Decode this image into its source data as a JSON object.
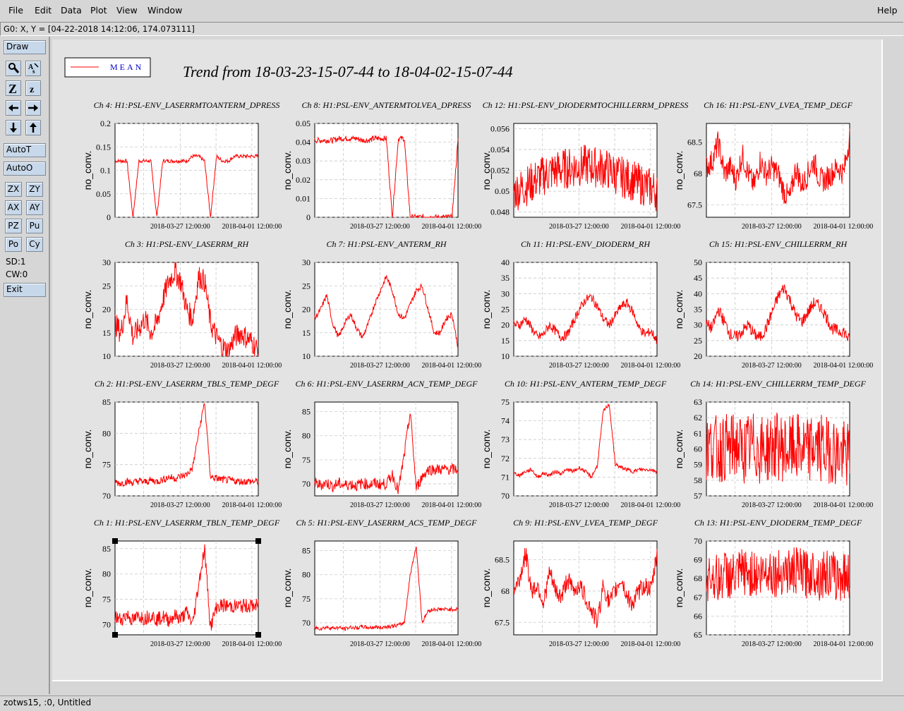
{
  "menu": {
    "file": "File",
    "edit": "Edit",
    "data": "Data",
    "plot": "Plot",
    "view": "View",
    "window": "Window",
    "help": "Help"
  },
  "coord_readout": "G0: X, Y = [04-22-2018 14:12:06, 174.073111]",
  "toolbox": {
    "draw": "Draw",
    "autot": "AutoT",
    "autoo": "AutoO",
    "zx": "ZX",
    "zy": "ZY",
    "ax": "AX",
    "ay": "AY",
    "pz": "PZ",
    "pu": "Pu",
    "po": "Po",
    "cy": "Cy",
    "sd": "SD:1",
    "cw": "CW:0",
    "exit": "Exit"
  },
  "legend": {
    "label": "MEAN",
    "color": "#ff0000"
  },
  "title": "Trend from 18-03-23-15-07-44 to 18-04-02-15-07-44",
  "status": "zotws15, :0, Untitled",
  "chart_data": [
    {
      "type": "line",
      "title": "Ch 4: H1:PSL-ENV_LASERRMTOANTERM_DPRESS",
      "ylabel": "no_conv.",
      "yticks": [
        "0",
        "0.05",
        "0.1",
        "0.15",
        "0.2"
      ],
      "ylim": [
        0,
        0.2
      ],
      "xticks": [
        "2018-03-27 12:00:00",
        "2018-04-01 12:00:00"
      ],
      "series": [
        {
          "name": "MEAN",
          "values": [
            0.12,
            0.12,
            0.12,
            0,
            0.12,
            0.12,
            0.12,
            0,
            0.12,
            0.12,
            0.12,
            0.12,
            0.12,
            0.13,
            0.13,
            0.12,
            0,
            0.13,
            0.12,
            0.12,
            0.13,
            0.13,
            0.13,
            0.13,
            0.13
          ]
        }
      ]
    },
    {
      "type": "line",
      "title": "Ch 8: H1:PSL-ENV_ANTERMTOLVEA_DPRESS",
      "ylabel": "no_conv.",
      "yticks": [
        "0",
        "0.01",
        "0.02",
        "0.03",
        "0.04",
        "0.05"
      ],
      "ylim": [
        0,
        0.05
      ],
      "xticks": [
        "2018-03-27 12:00:00",
        "2018-04-01 12:00:00"
      ],
      "series": [
        {
          "name": "MEAN",
          "values": [
            0.041,
            0.041,
            0.041,
            0.041,
            0.042,
            0.042,
            0.042,
            0.042,
            0.041,
            0.041,
            0.042,
            0.042,
            0.042,
            0,
            0.042,
            0.042,
            0,
            0,
            0,
            0,
            0,
            0,
            0,
            0,
            0.041
          ]
        }
      ]
    },
    {
      "type": "line",
      "title": "Ch 12: H1:PSL-ENV_DIODERMTOCHILLERRM_DPRESS",
      "ylabel": "no_conv.",
      "yticks": [
        "0.048",
        "0.05",
        "0.052",
        "0.054",
        "0.056"
      ],
      "ylim": [
        0.0475,
        0.0565
      ],
      "xticks": [
        "2018-03-27 12:00:00",
        "2018-04-01 12:00:00"
      ],
      "series": [
        {
          "name": "MEAN",
          "values": [
            0.05,
            0.0502,
            0.0505,
            0.0508,
            0.0512,
            0.0515,
            0.0518,
            0.052,
            0.0521,
            0.0522,
            0.0523,
            0.0524,
            0.0525,
            0.0524,
            0.0523,
            0.0522,
            0.052,
            0.0517,
            0.0514,
            0.0512,
            0.051,
            0.0507,
            0.0505,
            0.0503,
            0.05
          ]
        }
      ]
    },
    {
      "type": "line",
      "title": "Ch 16: H1:PSL-ENV_LVEA_TEMP_DEGF",
      "ylabel": "no_conv.",
      "yticks": [
        "67.5",
        "68",
        "68.5"
      ],
      "ylim": [
        67.3,
        68.8
      ],
      "xticks": [
        "2018-03-27 12:00:00",
        "2018-04-01 12:00:00"
      ],
      "series": [
        {
          "name": "MEAN",
          "values": [
            68.1,
            68.2,
            68.5,
            68.0,
            68.1,
            67.9,
            68.3,
            68.0,
            67.8,
            68.2,
            68.0,
            68.1,
            68.0,
            67.7,
            67.6,
            68.1,
            67.8,
            68.0,
            68.2,
            67.9,
            67.9,
            68.0,
            68.1,
            68.0,
            68.6
          ]
        }
      ]
    },
    {
      "type": "line",
      "title": "Ch 3: H1:PSL-ENV_LASERRM_RH",
      "ylabel": "no_conv.",
      "yticks": [
        "10",
        "15",
        "20",
        "25",
        "30"
      ],
      "ylim": [
        10,
        30
      ],
      "xticks": [
        "2018-03-27 12:00:00",
        "2018-04-01 12:00:00"
      ],
      "series": [
        {
          "name": "MEAN",
          "values": [
            17,
            15,
            22,
            14,
            16,
            18,
            15,
            17,
            22,
            26,
            28,
            26,
            20,
            18,
            27,
            26,
            17,
            14,
            12,
            11,
            14,
            15,
            14,
            13,
            11
          ]
        }
      ]
    },
    {
      "type": "line",
      "title": "Ch 7: H1:PSL-ENV_ANTERM_RH",
      "ylabel": "no_conv.",
      "yticks": [
        "10",
        "15",
        "20",
        "25",
        "30"
      ],
      "ylim": [
        10,
        30
      ],
      "xticks": [
        "2018-03-27 12:00:00",
        "2018-04-01 12:00:00"
      ],
      "series": [
        {
          "name": "MEAN",
          "values": [
            18,
            20,
            23,
            17,
            14,
            17,
            19,
            16,
            14,
            17,
            21,
            24,
            27,
            24,
            19,
            18,
            21,
            24,
            25,
            20,
            15,
            15,
            18,
            19,
            12
          ]
        }
      ]
    },
    {
      "type": "line",
      "title": "Ch 11: H1:PSL-ENV_DIODERM_RH",
      "ylabel": "no_conv.",
      "yticks": [
        "10",
        "15",
        "20",
        "25",
        "30",
        "35",
        "40"
      ],
      "ylim": [
        10,
        40
      ],
      "xticks": [
        "2018-03-27 12:00:00",
        "2018-04-01 12:00:00"
      ],
      "series": [
        {
          "name": "MEAN",
          "values": [
            20,
            20,
            22,
            19,
            16,
            17,
            20,
            18,
            16,
            17,
            21,
            25,
            28,
            29,
            26,
            22,
            20,
            23,
            26,
            27,
            24,
            19,
            17,
            18,
            15
          ]
        }
      ]
    },
    {
      "type": "line",
      "title": "Ch 15: H1:PSL-ENV_CHILLERRM_RH",
      "ylabel": "no_conv.",
      "yticks": [
        "20",
        "25",
        "30",
        "35",
        "40",
        "45",
        "50"
      ],
      "ylim": [
        20,
        50
      ],
      "xticks": [
        "2018-03-27 12:00:00",
        "2018-04-01 12:00:00"
      ],
      "series": [
        {
          "name": "MEAN",
          "values": [
            30,
            29,
            35,
            31,
            27,
            26,
            28,
            30,
            27,
            26,
            29,
            34,
            39,
            42,
            38,
            33,
            31,
            34,
            37,
            36,
            33,
            29,
            28,
            28,
            25
          ]
        }
      ]
    },
    {
      "type": "line",
      "title": "Ch 2: H1:PSL-ENV_LASERRM_TBLS_TEMP_DEGF",
      "ylabel": "no_conv.",
      "yticks": [
        "70",
        "75",
        "80",
        "85"
      ],
      "ylim": [
        70,
        85
      ],
      "xticks": [
        "2018-03-27 12:00:00",
        "2018-04-01 12:00:00"
      ],
      "series": [
        {
          "name": "MEAN",
          "values": [
            72.2,
            72.0,
            72.3,
            72.1,
            72.4,
            72.2,
            72.5,
            72.3,
            72.6,
            73.0,
            72.8,
            73.1,
            73.4,
            74.5,
            80.0,
            85.0,
            73.0,
            72.8,
            72.6,
            72.5,
            72.4,
            72.3,
            72.3,
            72.3,
            72.3
          ]
        }
      ]
    },
    {
      "type": "line",
      "title": "Ch 6: H1:PSL-ENV_LASERRM_ACN_TEMP_DEGF",
      "ylabel": "no_conv.",
      "yticks": [
        "70",
        "75",
        "80",
        "85"
      ],
      "ylim": [
        67.5,
        87
      ],
      "xticks": [
        "2018-03-27 12:00:00",
        "2018-04-01 12:00:00"
      ],
      "series": [
        {
          "name": "MEAN",
          "values": [
            70.0,
            69.8,
            70.2,
            69.5,
            70.1,
            69.7,
            70.0,
            69.6,
            70.2,
            69.8,
            70.1,
            69.9,
            70.0,
            72.0,
            68.5,
            76.0,
            85.0,
            69.0,
            71.5,
            73.0,
            73.0,
            73.0,
            73.0,
            73.0,
            73.0
          ]
        }
      ]
    },
    {
      "type": "line",
      "title": "Ch 10: H1:PSL-ENV_ANTERM_TEMP_DEGF",
      "ylabel": "no_conv.",
      "yticks": [
        "70",
        "71",
        "72",
        "73",
        "74",
        "75"
      ],
      "ylim": [
        70,
        75
      ],
      "xticks": [
        "2018-03-27 12:00:00",
        "2018-04-01 12:00:00"
      ],
      "series": [
        {
          "name": "MEAN",
          "values": [
            71.2,
            71.1,
            71.3,
            71.4,
            71.0,
            71.2,
            71.1,
            71.3,
            71.2,
            71.4,
            71.3,
            71.5,
            71.3,
            71.0,
            71.6,
            74.5,
            74.9,
            71.7,
            71.5,
            71.4,
            71.3,
            71.4,
            71.4,
            71.4,
            71.3
          ]
        }
      ]
    },
    {
      "type": "line",
      "title": "Ch 14: H1:PSL-ENV_CHILLERRM_TEMP_DEGF",
      "ylabel": "no_conv.",
      "yticks": [
        "57",
        "58",
        "59",
        "60",
        "61",
        "62",
        "63"
      ],
      "ylim": [
        57,
        63
      ],
      "xticks": [
        "2018-03-27 12:00:00",
        "2018-04-01 12:00:00"
      ],
      "series": [
        {
          "name": "MEAN",
          "values": [
            60.0,
            60.2,
            59.9,
            60.1,
            60.0,
            60.3,
            59.8,
            60.1,
            60.2,
            59.9,
            60.0,
            60.1,
            60.2,
            60.0,
            59.9,
            60.1,
            60.0,
            59.8,
            60.2,
            60.1,
            59.9,
            60.0,
            59.7,
            59.6,
            59.5
          ]
        }
      ]
    },
    {
      "type": "line",
      "title": "Ch 1: H1:PSL-ENV_LASERRM_TBLN_TEMP_DEGF",
      "ylabel": "no_conv.",
      "yticks": [
        "70",
        "75",
        "80",
        "85"
      ],
      "ylim": [
        68,
        86.5
      ],
      "xticks": [
        "2018-03-27 12:00:00",
        "2018-04-01 12:00:00"
      ],
      "series": [
        {
          "name": "MEAN",
          "values": [
            71.5,
            71.0,
            72.0,
            70.8,
            71.8,
            71.2,
            72.0,
            71.0,
            71.6,
            70.9,
            71.8,
            71.2,
            72.5,
            70.0,
            78.0,
            85.0,
            69.5,
            73.5,
            73.8,
            73.7,
            73.6,
            73.7,
            73.7,
            73.7,
            73.7
          ]
        }
      ]
    },
    {
      "type": "line",
      "title": "Ch 5: H1:PSL-ENV_LASERRM_ACS_TEMP_DEGF",
      "ylabel": "no_conv.",
      "yticks": [
        "70",
        "75",
        "80",
        "85"
      ],
      "ylim": [
        67.5,
        87
      ],
      "xticks": [
        "2018-03-27 12:00:00",
        "2018-04-01 12:00:00"
      ],
      "series": [
        {
          "name": "MEAN",
          "values": [
            69.0,
            68.8,
            69.1,
            68.9,
            69.0,
            68.7,
            69.1,
            68.9,
            69.2,
            69.0,
            69.1,
            69.0,
            69.2,
            69.3,
            69.5,
            70.0,
            80.0,
            86.0,
            70.0,
            72.5,
            72.8,
            72.8,
            72.8,
            72.8,
            72.8
          ]
        }
      ]
    },
    {
      "type": "line",
      "title": "Ch 9: H1:PSL-ENV_LVEA_TEMP_DEGF",
      "ylabel": "no_conv.",
      "yticks": [
        "67.5",
        "68",
        "68.5"
      ],
      "ylim": [
        67.3,
        68.8
      ],
      "xticks": [
        "2018-03-27 12:00:00",
        "2018-04-01 12:00:00"
      ],
      "series": [
        {
          "name": "MEAN",
          "values": [
            68.0,
            68.2,
            68.6,
            68.0,
            68.1,
            67.8,
            68.3,
            68.0,
            67.9,
            68.2,
            68.0,
            68.1,
            67.9,
            67.7,
            67.5,
            68.1,
            67.8,
            68.0,
            68.2,
            67.9,
            67.8,
            68.0,
            68.1,
            68.0,
            68.6
          ]
        }
      ]
    },
    {
      "type": "line",
      "title": "Ch 13: H1:PSL-ENV_DIODERM_TEMP_DEGF",
      "ylabel": "no_conv.",
      "yticks": [
        "65",
        "66",
        "67",
        "68",
        "69",
        "70"
      ],
      "ylim": [
        65,
        70
      ],
      "xticks": [
        "2018-03-27 12:00:00",
        "2018-04-01 12:00:00"
      ],
      "series": [
        {
          "name": "MEAN",
          "values": [
            68.0,
            68.2,
            67.9,
            68.3,
            68.1,
            68.0,
            68.4,
            68.2,
            68.3,
            68.1,
            68.5,
            68.4,
            68.2,
            68.5,
            68.3,
            68.4,
            68.3,
            68.2,
            68.4,
            68.1,
            68.3,
            68.2,
            68.0,
            68.2,
            68.1
          ]
        }
      ]
    }
  ]
}
